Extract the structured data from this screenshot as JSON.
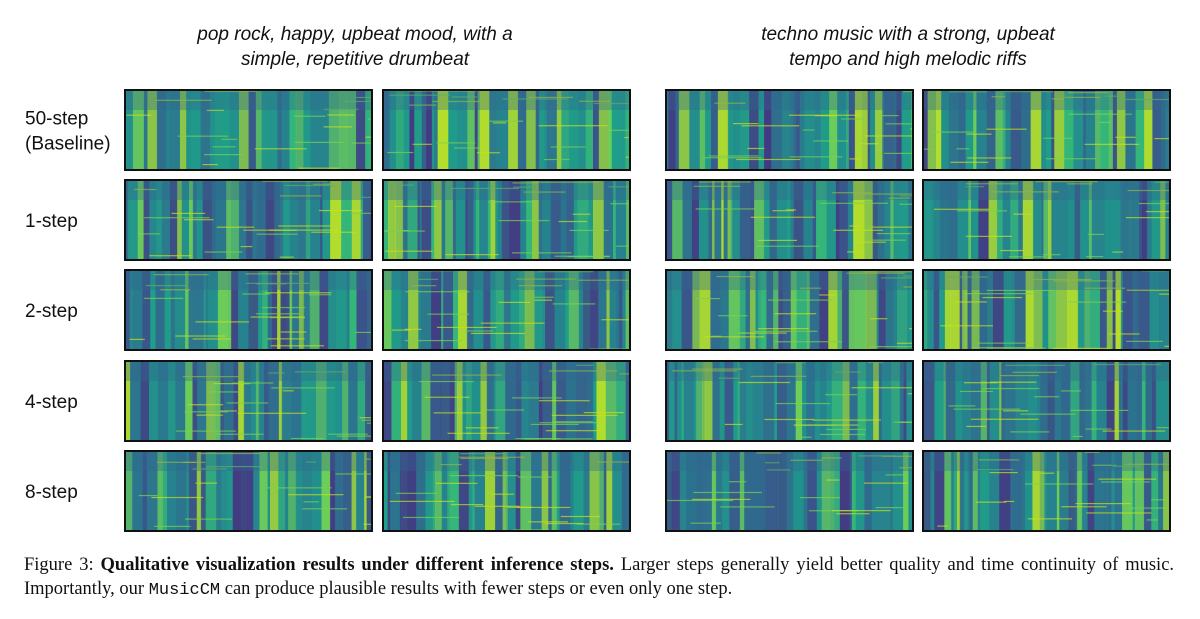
{
  "figure": {
    "columns": [
      {
        "title": [
          "pop rock, happy, upbeat mood, with a",
          "simple, repetitive drumbeat"
        ]
      },
      {
        "title": [
          "techno music with a strong, upbeat",
          "tempo and high melodic riffs"
        ]
      }
    ],
    "rows": [
      {
        "label": [
          "50-step",
          "(Baseline)"
        ]
      },
      {
        "label": [
          "1-step"
        ]
      },
      {
        "label": [
          "2-step"
        ]
      },
      {
        "label": [
          "4-step"
        ]
      },
      {
        "label": [
          "8-step"
        ]
      }
    ],
    "caption": {
      "label": "Figure 3:",
      "bold": "Qualitative visualization results under different inference steps.",
      "text_1": "Larger steps generally yield better quality and time continuity of music. Importantly, our",
      "code": "MusicCM",
      "text_2": "can produce plausible results with fewer steps or even only one step."
    }
  }
}
